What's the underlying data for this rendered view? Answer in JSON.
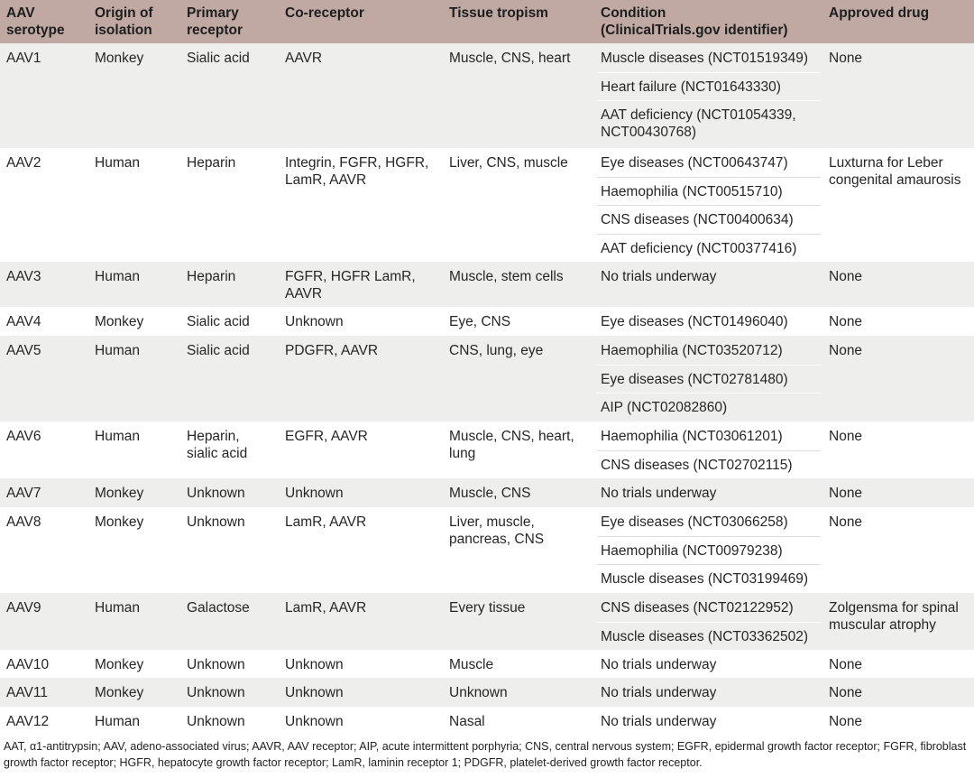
{
  "headers": [
    "AAV\nserotype",
    "Origin of\nisolation",
    "Primary\nreceptor",
    "Co-receptor",
    "Tissue tropism",
    "Condition\n(ClinicalTrials.gov identifier)",
    "Approved drug"
  ],
  "rows": [
    {
      "serotype": "AAV1",
      "origin": "Monkey",
      "primary": "Sialic acid",
      "coreceptor": "AAVR",
      "tropism": "Muscle, CNS, heart",
      "conditions": [
        "Muscle diseases (NCT01519349)",
        "Heart failure (NCT01643330)",
        "AAT deficiency (NCT01054339,\nNCT00430768)"
      ],
      "drug": "None"
    },
    {
      "serotype": "AAV2",
      "origin": "Human",
      "primary": "Heparin",
      "coreceptor": "Integrin, FGFR, HGFR,\nLamR, AAVR",
      "tropism": "Liver, CNS, muscle",
      "conditions": [
        "Eye diseases (NCT00643747)",
        "Haemophilia (NCT00515710)",
        "CNS diseases (NCT00400634)",
        "AAT deficiency (NCT00377416)"
      ],
      "drug": "Luxturna for Leber\ncongenital amaurosis"
    },
    {
      "serotype": "AAV3",
      "origin": "Human",
      "primary": "Heparin",
      "coreceptor": "FGFR, HGFR LamR,\nAAVR",
      "tropism": "Muscle, stem cells",
      "conditions": [
        "No trials underway"
      ],
      "drug": "None"
    },
    {
      "serotype": "AAV4",
      "origin": "Monkey",
      "primary": "Sialic acid",
      "coreceptor": "Unknown",
      "tropism": "Eye, CNS",
      "conditions": [
        "Eye diseases (NCT01496040)"
      ],
      "drug": "None"
    },
    {
      "serotype": "AAV5",
      "origin": "Human",
      "primary": "Sialic acid",
      "coreceptor": "PDGFR, AAVR",
      "tropism": "CNS, lung, eye",
      "conditions": [
        "Haemophilia (NCT03520712)",
        "Eye diseases (NCT02781480)",
        "AIP (NCT02082860)"
      ],
      "drug": "None"
    },
    {
      "serotype": "AAV6",
      "origin": "Human",
      "primary": "Heparin,\nsialic acid",
      "coreceptor": "EGFR, AAVR",
      "tropism": "Muscle, CNS, heart,\nlung",
      "conditions": [
        "Haemophilia (NCT03061201)",
        "CNS diseases (NCT02702115)"
      ],
      "drug": "None"
    },
    {
      "serotype": "AAV7",
      "origin": "Monkey",
      "primary": "Unknown",
      "coreceptor": "Unknown",
      "tropism": "Muscle, CNS",
      "conditions": [
        "No trials underway"
      ],
      "drug": "None"
    },
    {
      "serotype": "AAV8",
      "origin": "Monkey",
      "primary": "Unknown",
      "coreceptor": "LamR, AAVR",
      "tropism": "Liver, muscle,\npancreas, CNS",
      "conditions": [
        "Eye diseases (NCT03066258)",
        "Haemophilia (NCT00979238)",
        "Muscle diseases (NCT03199469)"
      ],
      "drug": "None"
    },
    {
      "serotype": "AAV9",
      "origin": "Human",
      "primary": "Galactose",
      "coreceptor": "LamR, AAVR",
      "tropism": "Every tissue",
      "conditions": [
        "CNS diseases (NCT02122952)",
        "Muscle diseases (NCT03362502)"
      ],
      "drug": "Zolgensma for spinal\nmuscular atrophy"
    },
    {
      "serotype": "AAV10",
      "origin": "Monkey",
      "primary": "Unknown",
      "coreceptor": "Unknown",
      "tropism": "Muscle",
      "conditions": [
        "No trials underway"
      ],
      "drug": "None"
    },
    {
      "serotype": "AAV11",
      "origin": "Monkey",
      "primary": "Unknown",
      "coreceptor": "Unknown",
      "tropism": "Unknown",
      "conditions": [
        "No trials underway"
      ],
      "drug": "None"
    },
    {
      "serotype": "AAV12",
      "origin": "Human",
      "primary": "Unknown",
      "coreceptor": "Unknown",
      "tropism": "Nasal",
      "conditions": [
        "No trials underway"
      ],
      "drug": "None"
    }
  ],
  "footnote": "AAT, α1-antitrypsin; AAV, adeno-associated virus; AAVR, AAV receptor; AIP, acute intermittent porphyria; CNS, central nervous system; EGFR, epidermal growth factor receptor; FGFR, fibroblast growth factor receptor; HGFR, hepatocyte growth factor receptor; LamR, laminin receptor 1; PDGFR, platelet-derived growth factor receptor.",
  "colors": {
    "header_bg": "#bfa9a2",
    "row_shade": "#eeeeed",
    "row_plain": "#ffffff"
  }
}
